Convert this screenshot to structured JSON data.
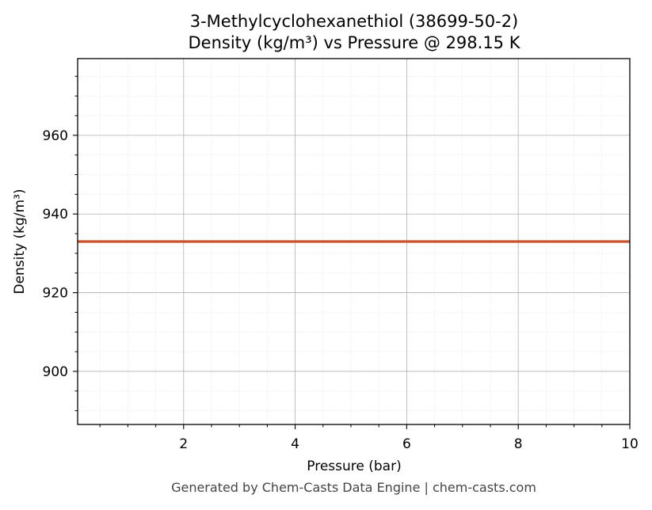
{
  "chart_data": {
    "type": "line",
    "title": "3-Methylcyclohexanethiol (38699-50-2)",
    "subtitle": "Density (kg/m³) vs Pressure @ 298.15 K",
    "xlabel": "Pressure (bar)",
    "ylabel": "Density (kg/m³)",
    "xlim": [
      0.1,
      10
    ],
    "ylim": [
      886.5,
      979.5
    ],
    "x_ticks": [
      2,
      4,
      6,
      8,
      10
    ],
    "y_ticks": [
      900,
      920,
      940,
      960
    ],
    "x_tick_labels": [
      "2",
      "4",
      "6",
      "8",
      "10"
    ],
    "y_tick_labels": [
      "900",
      "920",
      "940",
      "960"
    ],
    "grid": true,
    "grid_minor": true,
    "legend": "none",
    "series": [
      {
        "color": "#c8522a",
        "x": [
          0.1,
          1,
          2,
          3,
          4,
          5,
          6,
          7,
          8,
          9,
          10
        ],
        "y": [
          933,
          933,
          933,
          933,
          933,
          933,
          933,
          933,
          933,
          933,
          933
        ]
      }
    ]
  },
  "footer": "Generated by Chem-Casts Data Engine | chem-casts.com"
}
